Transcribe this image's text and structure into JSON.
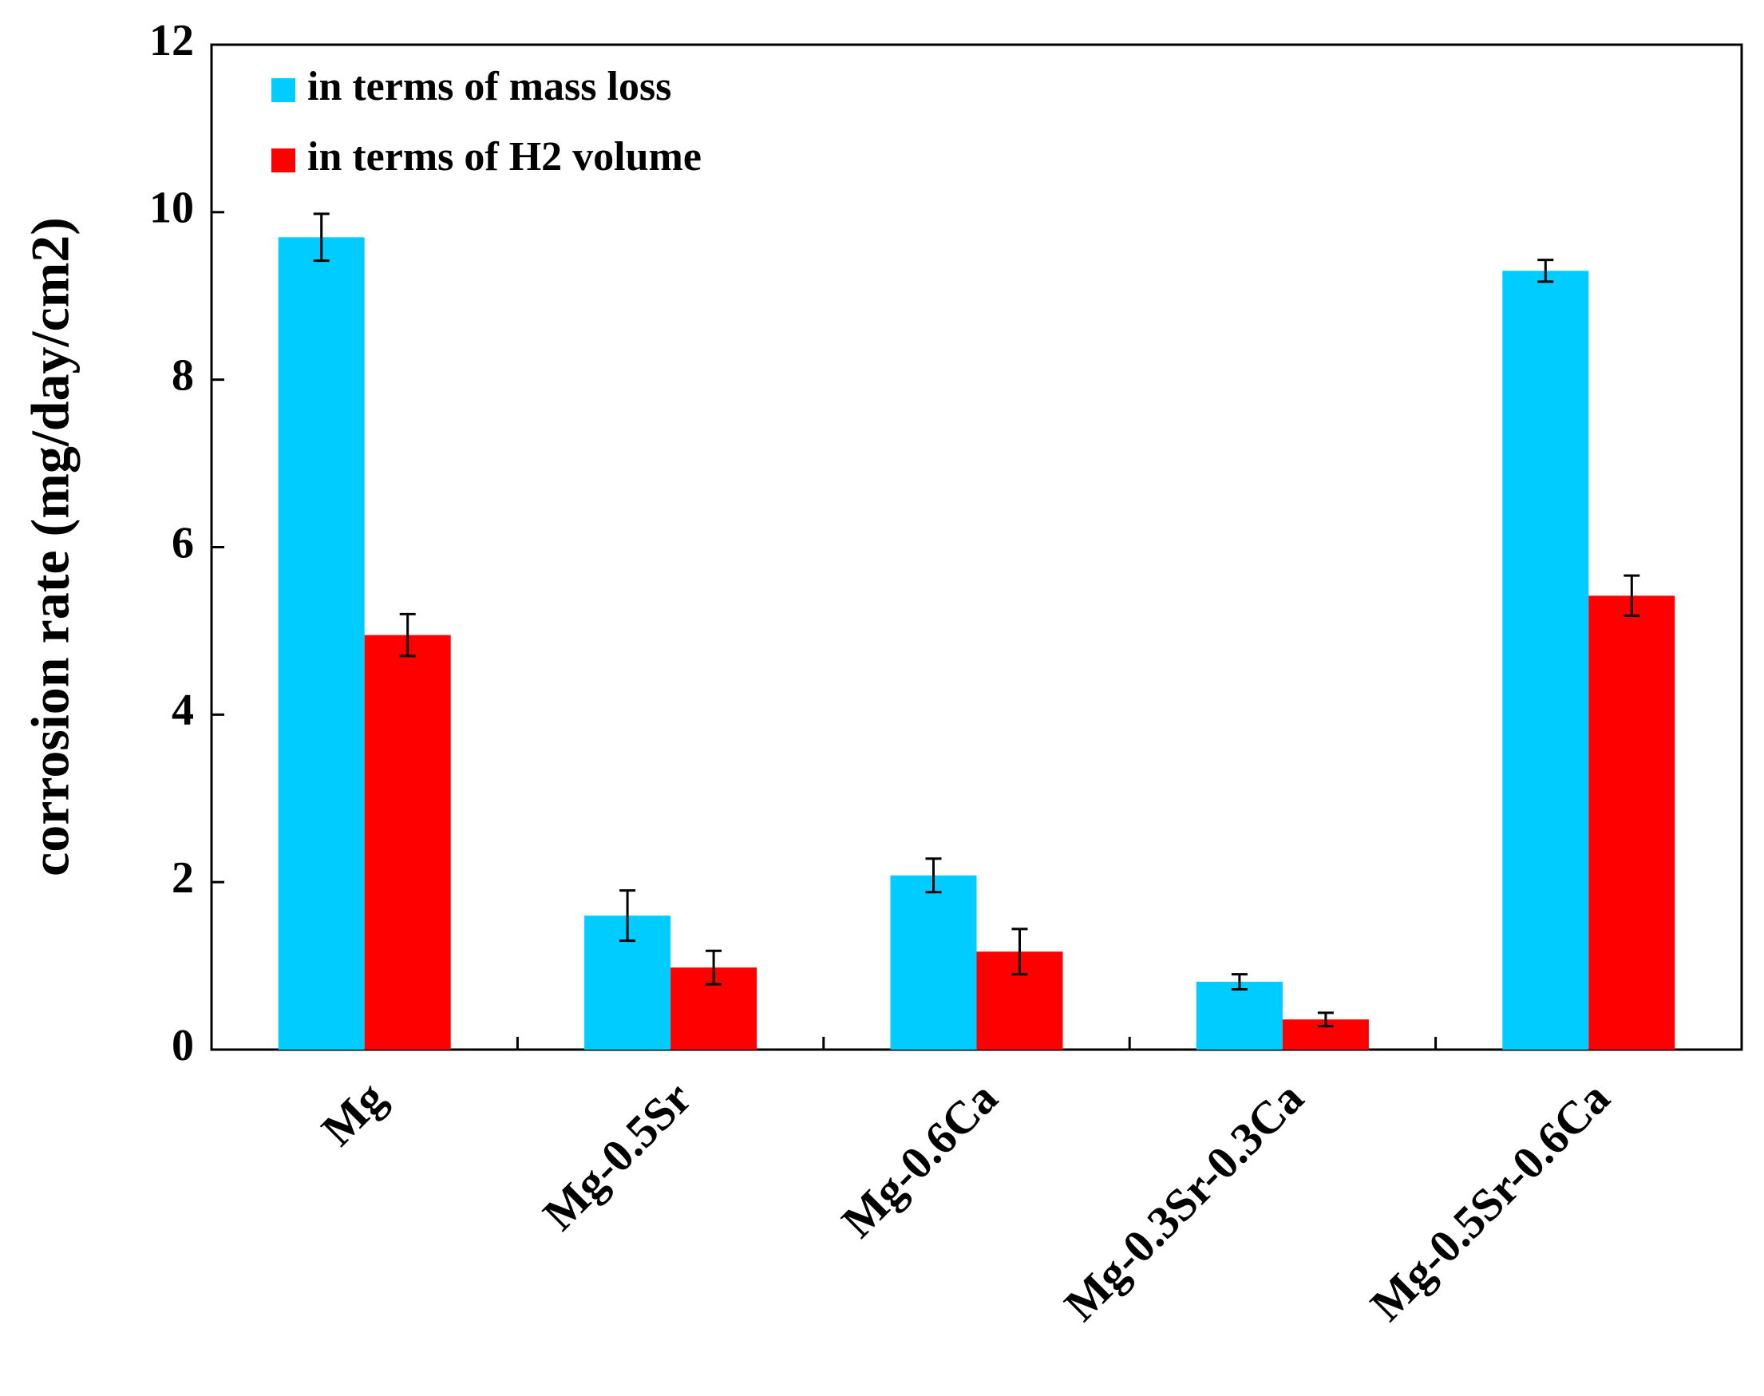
{
  "chart_data": {
    "type": "bar",
    "y_label": "corrosion rate (mg/day/cm2)",
    "categories": [
      "Mg",
      "Mg-0.5Sr",
      "Mg-0.6Ca",
      "Mg-0.3Sr-0.3Ca",
      "Mg-0.5Sr-0.6Ca"
    ],
    "series": [
      {
        "name": "in terms of mass loss",
        "color": "#00ccff",
        "values": [
          9.7,
          1.6,
          2.08,
          0.81,
          9.3
        ],
        "errors": [
          0.28,
          0.3,
          0.2,
          0.09,
          0.13
        ]
      },
      {
        "name": "in terms of H2 volume",
        "color": "#ff0000",
        "values": [
          4.95,
          0.98,
          1.17,
          0.36,
          5.42
        ],
        "errors": [
          0.25,
          0.2,
          0.27,
          0.08,
          0.24
        ]
      }
    ],
    "ylim": [
      0,
      12
    ],
    "yticks": [
      0,
      2,
      4,
      6,
      8,
      10,
      12
    ],
    "grid": false,
    "legend": "upper left"
  }
}
